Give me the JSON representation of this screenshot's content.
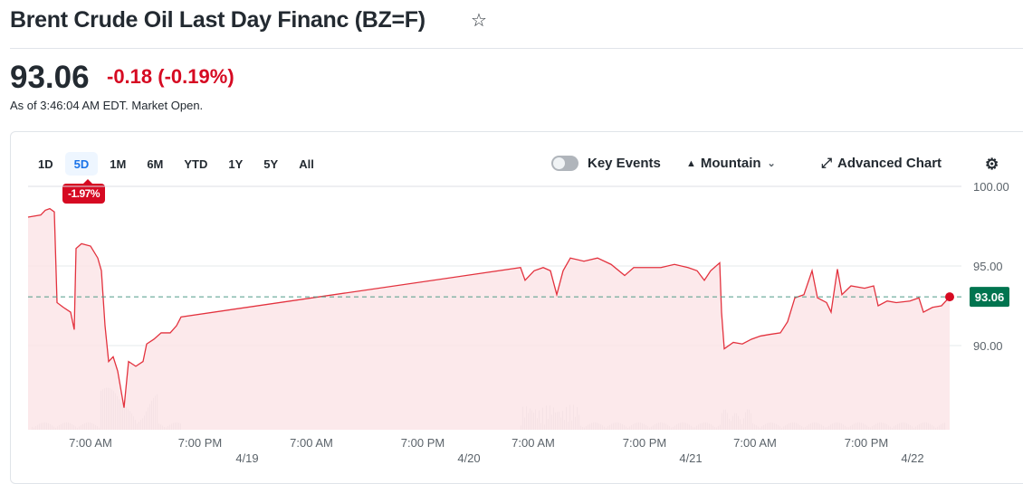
{
  "header": {
    "title": "Brent Crude Oil Last Day Financ (BZ=F)",
    "star_icon": "☆"
  },
  "quote": {
    "price": "93.06",
    "change": "-0.18",
    "change_pct": "(-0.19%)",
    "as_of": "As of 3:46:04 AM EDT. Market Open."
  },
  "toolbar": {
    "ranges": [
      "1D",
      "5D",
      "1M",
      "6M",
      "YTD",
      "1Y",
      "5Y",
      "All"
    ],
    "active_range": "5D",
    "range_change": "-1.97%",
    "key_events": "Key Events",
    "chart_type": "Mountain",
    "advanced": "Advanced Chart"
  },
  "colors": {
    "line": "#e3323e",
    "fill": "#fbe3e6",
    "last_price": "#00744f",
    "negative": "#d60a22",
    "active": "#1a73e8"
  },
  "chart_data": {
    "type": "area",
    "ylim": [
      85.5,
      100
    ],
    "yticks": [
      "100.00",
      "95.00",
      "90.00"
    ],
    "reference_line": 93.06,
    "last_label": "93.06",
    "xticks": [
      "7:00 AM",
      "7:00 PM",
      "4/19",
      "7:00 AM",
      "7:00 PM",
      "4/20",
      "7:00 AM",
      "7:00 PM",
      "4/21",
      "7:00 AM",
      "7:00 PM",
      "4/22"
    ],
    "grid": true,
    "values": [
      98.07,
      98.2,
      98.5,
      98.6,
      98.4,
      92.7,
      92.4,
      92.1,
      91.0,
      96.1,
      96.4,
      96.25,
      95.5,
      94.7,
      91.25,
      89.0,
      89.3,
      88.4,
      86.1,
      89.0,
      88.7,
      89.0,
      90.1,
      90.4,
      90.8,
      90.8,
      91.25,
      91.8,
      94.9,
      94.1,
      94.7,
      94.9,
      94.7,
      93.2,
      94.7,
      95.5,
      95.3,
      95.5,
      95.1,
      94.4,
      94.9,
      94.9,
      94.9,
      95.1,
      94.9,
      94.7,
      94.1,
      94.7,
      95.2,
      92.1,
      89.8,
      90.2,
      90.1,
      90.4,
      90.6,
      90.7,
      90.8,
      91.5,
      93.0,
      93.2,
      94.7,
      93.0,
      92.7,
      92.1,
      94.8,
      93.2,
      93.75,
      93.6,
      93.75,
      92.5,
      92.8,
      92.7,
      92.8,
      93.0,
      92.1,
      92.4,
      92.5,
      93.06
    ]
  }
}
